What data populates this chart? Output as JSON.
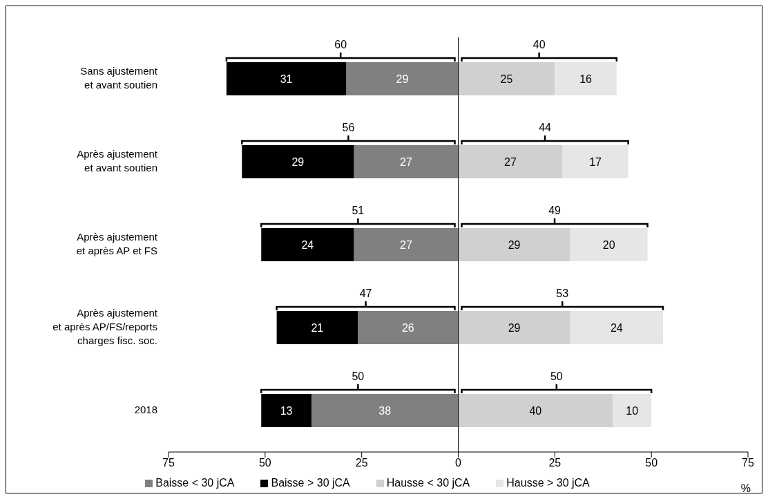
{
  "chart_data": {
    "type": "bar",
    "orientation": "horizontal",
    "categories": [
      "Sans ajustement\net avant soutien",
      "Après ajustement\net avant soutien",
      "Après ajustement\net après AP et FS",
      "Après ajustement\net après AP/FS/reports\ncharges fisc. soc.",
      "2018"
    ],
    "series": [
      {
        "name": "Baisse < 30 jCA",
        "color": "#808080",
        "values": [
          29,
          27,
          27,
          26,
          38
        ],
        "base": [
          -29,
          -27,
          -27,
          -26,
          -38
        ]
      },
      {
        "name": "Baisse > 30 jCA",
        "color": "#000000",
        "values": [
          31,
          29,
          24,
          21,
          13
        ],
        "base": [
          -60,
          -56,
          -51,
          -47,
          -51
        ]
      },
      {
        "name": "Hausse < 30 jCA",
        "color": "#d0d0d0",
        "values": [
          25,
          27,
          29,
          29,
          40
        ],
        "base": [
          0,
          0,
          0,
          0,
          0
        ]
      },
      {
        "name": "Hausse > 30 jCA",
        "color": "#e6e6e6",
        "values": [
          16,
          17,
          20,
          24,
          10
        ],
        "base": [
          25,
          27,
          29,
          29,
          40
        ]
      }
    ],
    "data_labels": true,
    "totals": [
      [
        "60",
        "40"
      ],
      [
        "56",
        "44"
      ],
      [
        "51",
        "49"
      ],
      [
        "47",
        "53"
      ],
      [
        "50",
        "50"
      ]
    ],
    "xlim": [
      -75,
      75
    ],
    "xticks": [
      {
        "value": -75,
        "label": "75"
      },
      {
        "value": -50,
        "label": "50"
      },
      {
        "value": -25,
        "label": "25"
      },
      0,
      25,
      50,
      75
    ],
    "xlabel": "%",
    "ref_lines": [
      {
        "axis": "x",
        "value": 0,
        "color": "#000000"
      }
    ],
    "grid": false,
    "legend": "bottom"
  }
}
